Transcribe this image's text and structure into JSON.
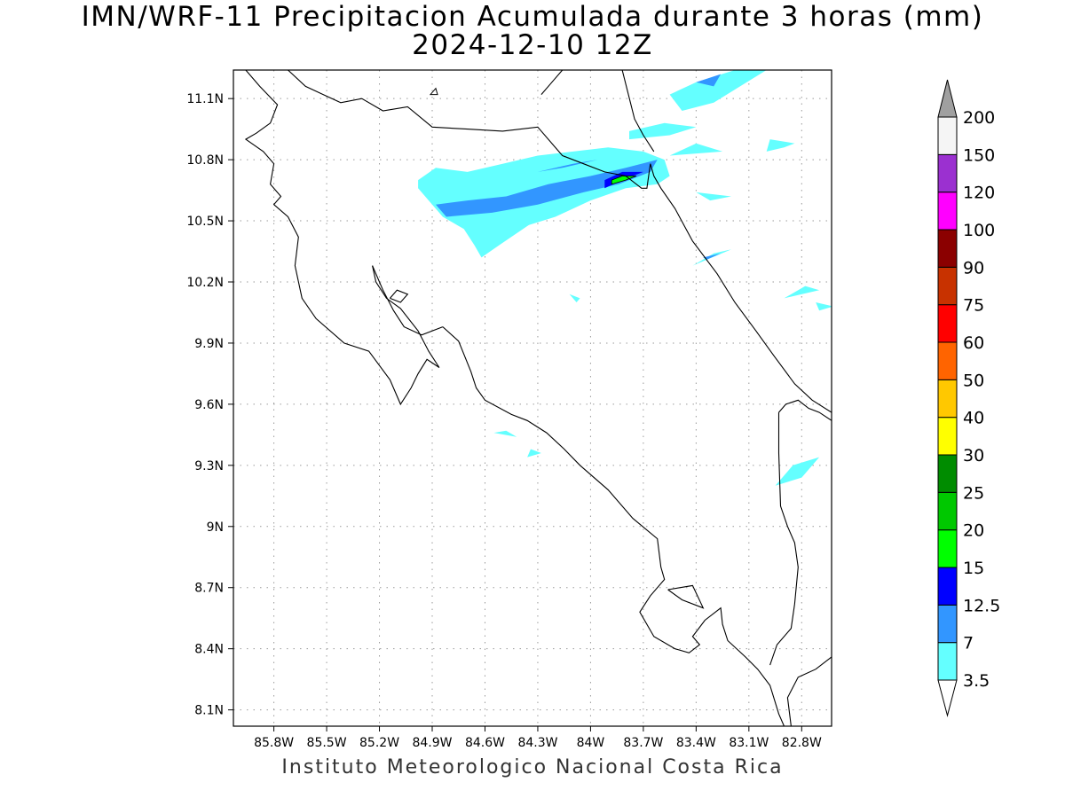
{
  "title": {
    "line1": "IMN/WRF-11 Precipitacion Acumulada durante 3 horas (mm)",
    "line2": "2024-12-10 12Z"
  },
  "footer": "Instituto Meteorologico Nacional Costa Rica",
  "map": {
    "lon_range": [
      -86.03,
      -82.63
    ],
    "lat_range": [
      8.02,
      11.24
    ],
    "grid": "dotted",
    "x_ticks": [
      {
        "value": -85.8,
        "label": "85.8W"
      },
      {
        "value": -85.5,
        "label": "85.5W"
      },
      {
        "value": -85.2,
        "label": "85.2W"
      },
      {
        "value": -84.9,
        "label": "84.9W"
      },
      {
        "value": -84.6,
        "label": "84.6W"
      },
      {
        "value": -84.3,
        "label": "84.3W"
      },
      {
        "value": -84.0,
        "label": "84W"
      },
      {
        "value": -83.7,
        "label": "83.7W"
      },
      {
        "value": -83.4,
        "label": "83.4W"
      },
      {
        "value": -83.1,
        "label": "83.1W"
      },
      {
        "value": -82.8,
        "label": "82.8W"
      }
    ],
    "y_ticks": [
      {
        "value": 11.1,
        "label": "11.1N"
      },
      {
        "value": 10.8,
        "label": "10.8N"
      },
      {
        "value": 10.5,
        "label": "10.5N"
      },
      {
        "value": 10.2,
        "label": "10.2N"
      },
      {
        "value": 9.9,
        "label": "9.9N"
      },
      {
        "value": 9.6,
        "label": "9.6N"
      },
      {
        "value": 9.3,
        "label": "9.3N"
      },
      {
        "value": 9.0,
        "label": "9N"
      },
      {
        "value": 8.7,
        "label": "8.7N"
      },
      {
        "value": 8.4,
        "label": "8.4N"
      },
      {
        "value": 8.1,
        "label": "8.1N"
      }
    ],
    "coastlines": [
      [
        [
          -85.96,
          11.24
        ],
        [
          -85.88,
          11.16
        ],
        [
          -85.78,
          11.07
        ],
        [
          -85.82,
          10.98
        ],
        [
          -85.9,
          10.93
        ],
        [
          -85.96,
          10.9
        ],
        [
          -85.86,
          10.84
        ],
        [
          -85.8,
          10.78
        ],
        [
          -85.82,
          10.68
        ],
        [
          -85.76,
          10.62
        ],
        [
          -85.8,
          10.58
        ],
        [
          -85.72,
          10.52
        ],
        [
          -85.66,
          10.42
        ],
        [
          -85.68,
          10.28
        ],
        [
          -85.64,
          10.12
        ],
        [
          -85.56,
          10.02
        ],
        [
          -85.4,
          9.9
        ],
        [
          -85.26,
          9.86
        ],
        [
          -85.14,
          9.72
        ],
        [
          -85.08,
          9.6
        ],
        [
          -85.02,
          9.68
        ],
        [
          -84.98,
          9.75
        ],
        [
          -84.93,
          9.82
        ],
        [
          -84.86,
          9.78
        ],
        [
          -84.92,
          9.86
        ],
        [
          -84.98,
          9.96
        ],
        [
          -85.08,
          10.07
        ],
        [
          -85.16,
          10.12
        ],
        [
          -85.22,
          10.2
        ],
        [
          -85.24,
          10.28
        ]
      ],
      [
        [
          -84.84,
          9.98
        ],
        [
          -84.75,
          9.91
        ],
        [
          -84.68,
          9.76
        ],
        [
          -84.65,
          9.68
        ],
        [
          -84.6,
          9.62
        ],
        [
          -84.45,
          9.55
        ],
        [
          -84.36,
          9.52
        ],
        [
          -84.25,
          9.46
        ],
        [
          -84.15,
          9.38
        ],
        [
          -84.06,
          9.3
        ],
        [
          -83.9,
          9.18
        ],
        [
          -83.76,
          9.04
        ],
        [
          -83.62,
          8.94
        ],
        [
          -83.6,
          8.8
        ],
        [
          -83.58,
          8.74
        ],
        [
          -83.66,
          8.66
        ],
        [
          -83.72,
          8.58
        ],
        [
          -83.64,
          8.46
        ],
        [
          -83.52,
          8.4
        ],
        [
          -83.44,
          8.38
        ],
        [
          -83.38,
          8.42
        ],
        [
          -83.42,
          8.46
        ],
        [
          -83.35,
          8.54
        ],
        [
          -83.26,
          8.6
        ],
        [
          -83.25,
          8.52
        ],
        [
          -83.22,
          8.44
        ],
        [
          -83.12,
          8.36
        ],
        [
          -83.05,
          8.3
        ],
        [
          -82.98,
          8.22
        ],
        [
          -82.93,
          8.08
        ],
        [
          -82.9,
          8.02
        ],
        [
          -82.86,
          8.02
        ],
        [
          -82.88,
          8.16
        ],
        [
          -82.82,
          8.26
        ],
        [
          -82.72,
          8.3
        ],
        [
          -82.63,
          8.36
        ]
      ],
      [
        [
          -84.84,
          9.98
        ],
        [
          -84.96,
          9.94
        ],
        [
          -85.06,
          9.98
        ],
        [
          -85.12,
          10.06
        ],
        [
          -85.18,
          10.16
        ],
        [
          -85.24,
          10.28
        ]
      ],
      [
        [
          -85.14,
          10.12
        ],
        [
          -85.1,
          10.16
        ],
        [
          -85.04,
          10.14
        ],
        [
          -85.08,
          10.1
        ],
        [
          -85.14,
          10.12
        ]
      ],
      [
        [
          -83.56,
          8.69
        ],
        [
          -83.42,
          8.71
        ],
        [
          -83.36,
          8.6
        ],
        [
          -83.48,
          8.64
        ],
        [
          -83.56,
          8.69
        ]
      ],
      [
        [
          -85.72,
          11.24
        ],
        [
          -85.62,
          11.16
        ],
        [
          -85.52,
          11.12
        ],
        [
          -85.42,
          11.08
        ],
        [
          -85.3,
          11.1
        ],
        [
          -85.18,
          11.04
        ],
        [
          -85.04,
          11.06
        ],
        [
          -84.9,
          10.96
        ],
        [
          -84.7,
          10.95
        ],
        [
          -84.5,
          10.94
        ],
        [
          -84.3,
          10.96
        ],
        [
          -84.16,
          10.82
        ],
        [
          -84.04,
          10.78
        ],
        [
          -83.92,
          10.74
        ],
        [
          -83.8,
          10.72
        ],
        [
          -83.71,
          10.66
        ],
        [
          -83.68,
          10.66
        ],
        [
          -83.66,
          10.78
        ],
        [
          -83.64,
          10.72
        ],
        [
          -83.6,
          10.66
        ],
        [
          -83.52,
          10.56
        ],
        [
          -83.42,
          10.4
        ],
        [
          -83.28,
          10.24
        ],
        [
          -83.18,
          10.1
        ],
        [
          -83.06,
          9.96
        ],
        [
          -82.96,
          9.84
        ],
        [
          -82.84,
          9.7
        ],
        [
          -82.74,
          9.62
        ],
        [
          -82.63,
          9.56
        ]
      ],
      [
        [
          -84.16,
          11.24
        ],
        [
          -84.22,
          11.18
        ],
        [
          -84.28,
          11.12
        ]
      ],
      [
        [
          -83.82,
          11.24
        ],
        [
          -83.75,
          11.0
        ],
        [
          -83.7,
          10.92
        ],
        [
          -83.64,
          10.84
        ]
      ],
      [
        [
          -82.93,
          9.56
        ],
        [
          -82.89,
          9.6
        ],
        [
          -82.82,
          9.62
        ],
        [
          -82.76,
          9.58
        ],
        [
          -82.7,
          9.56
        ],
        [
          -82.63,
          9.52
        ]
      ],
      [
        [
          -82.93,
          9.56
        ],
        [
          -82.93,
          9.36
        ],
        [
          -82.92,
          9.1
        ],
        [
          -82.88,
          9.0
        ],
        [
          -82.84,
          8.92
        ],
        [
          -82.82,
          8.8
        ],
        [
          -82.84,
          8.62
        ],
        [
          -82.86,
          8.5
        ],
        [
          -82.94,
          8.42
        ],
        [
          -82.98,
          8.32
        ]
      ]
    ],
    "lake_islet": [
      [
        -84.91,
        11.12
      ],
      [
        -84.87,
        11.12
      ],
      [
        -84.88,
        11.15
      ],
      [
        -84.91,
        11.12
      ]
    ],
    "precip_cyan": [
      [
        [
          -84.98,
          10.7
        ],
        [
          -84.88,
          10.76
        ],
        [
          -84.7,
          10.74
        ],
        [
          -84.5,
          10.78
        ],
        [
          -84.3,
          10.82
        ],
        [
          -84.1,
          10.84
        ],
        [
          -83.9,
          10.86
        ],
        [
          -83.7,
          10.84
        ],
        [
          -83.58,
          10.8
        ],
        [
          -83.55,
          10.72
        ],
        [
          -83.62,
          10.68
        ],
        [
          -83.8,
          10.66
        ],
        [
          -84.0,
          10.6
        ],
        [
          -84.2,
          10.52
        ],
        [
          -84.35,
          10.48
        ],
        [
          -84.52,
          10.38
        ],
        [
          -84.62,
          10.32
        ],
        [
          -84.66,
          10.38
        ],
        [
          -84.72,
          10.46
        ],
        [
          -84.84,
          10.52
        ],
        [
          -84.9,
          10.58
        ],
        [
          -84.98,
          10.66
        ]
      ],
      [
        [
          -83.55,
          11.12
        ],
        [
          -83.4,
          11.18
        ],
        [
          -83.18,
          11.24
        ],
        [
          -83.0,
          11.24
        ],
        [
          -83.15,
          11.16
        ],
        [
          -83.3,
          11.08
        ],
        [
          -83.48,
          11.04
        ]
      ],
      [
        [
          -83.78,
          10.9
        ],
        [
          -83.55,
          10.92
        ],
        [
          -83.4,
          10.96
        ],
        [
          -83.58,
          10.98
        ],
        [
          -83.78,
          10.94
        ]
      ],
      [
        [
          -83.25,
          10.84
        ],
        [
          -83.55,
          10.82
        ],
        [
          -83.4,
          10.88
        ]
      ],
      [
        [
          -83.0,
          10.84
        ],
        [
          -82.9,
          10.86
        ],
        [
          -82.84,
          10.88
        ],
        [
          -82.98,
          10.9
        ]
      ],
      [
        [
          -83.2,
          10.62
        ],
        [
          -83.4,
          10.64
        ],
        [
          -83.32,
          10.6
        ]
      ],
      [
        [
          -83.2,
          10.36
        ],
        [
          -83.42,
          10.28
        ],
        [
          -83.3,
          10.34
        ]
      ],
      [
        [
          -82.7,
          9.34
        ],
        [
          -82.85,
          9.3
        ],
        [
          -82.95,
          9.2
        ],
        [
          -82.8,
          9.24
        ]
      ],
      [
        [
          -84.55,
          9.46
        ],
        [
          -84.42,
          9.44
        ],
        [
          -84.48,
          9.47
        ]
      ],
      [
        [
          -84.36,
          9.34
        ],
        [
          -84.28,
          9.36
        ],
        [
          -84.34,
          9.38
        ]
      ],
      [
        [
          -82.62,
          10.08
        ],
        [
          -82.7,
          10.06
        ],
        [
          -82.72,
          10.1
        ]
      ],
      [
        [
          -82.9,
          10.12
        ],
        [
          -82.78,
          10.18
        ],
        [
          -82.7,
          10.16
        ]
      ],
      [
        [
          -84.12,
          10.14
        ],
        [
          -84.08,
          10.1
        ],
        [
          -84.06,
          10.12
        ]
      ]
    ],
    "precip_blue": [
      [
        [
          -84.88,
          10.58
        ],
        [
          -84.7,
          10.6
        ],
        [
          -84.48,
          10.62
        ],
        [
          -84.24,
          10.68
        ],
        [
          -84.0,
          10.72
        ],
        [
          -83.8,
          10.76
        ],
        [
          -83.62,
          10.8
        ],
        [
          -83.66,
          10.74
        ],
        [
          -83.84,
          10.68
        ],
        [
          -84.04,
          10.64
        ],
        [
          -84.3,
          10.58
        ],
        [
          -84.56,
          10.54
        ],
        [
          -84.82,
          10.52
        ]
      ],
      [
        [
          -84.3,
          10.74
        ],
        [
          -84.1,
          10.78
        ],
        [
          -83.96,
          10.8
        ],
        [
          -84.16,
          10.76
        ]
      ],
      [
        [
          -83.4,
          11.18
        ],
        [
          -83.26,
          11.22
        ],
        [
          -83.3,
          11.16
        ]
      ],
      [
        [
          -83.36,
          10.32
        ],
        [
          -83.26,
          10.34
        ],
        [
          -83.34,
          10.31
        ]
      ]
    ],
    "precip_navy": [
      [
        -83.92,
        10.66
      ],
      [
        -83.82,
        10.7
      ],
      [
        -83.7,
        10.74
      ],
      [
        -83.82,
        10.74
      ],
      [
        -83.92,
        10.7
      ]
    ],
    "precip_green": [
      [
        -83.88,
        10.68
      ],
      [
        -83.8,
        10.7
      ],
      [
        -83.74,
        10.72
      ],
      [
        -83.82,
        10.72
      ],
      [
        -83.88,
        10.7
      ]
    ]
  },
  "legend": {
    "levels": [
      "3.5",
      "7",
      "12.5",
      "15",
      "20",
      "25",
      "30",
      "40",
      "50",
      "60",
      "75",
      "90",
      "100",
      "120",
      "150",
      "200"
    ],
    "colors": [
      "#ffffff",
      "#64ffff",
      "#3296ff",
      "#0000ff",
      "#00ff00",
      "#00c800",
      "#008c00",
      "#ffff00",
      "#ffc800",
      "#ff6400",
      "#ff0000",
      "#c83200",
      "#8b0000",
      "#ff00ff",
      "#9b30d0",
      "#f5f5f5",
      "#a0a0a0"
    ]
  }
}
